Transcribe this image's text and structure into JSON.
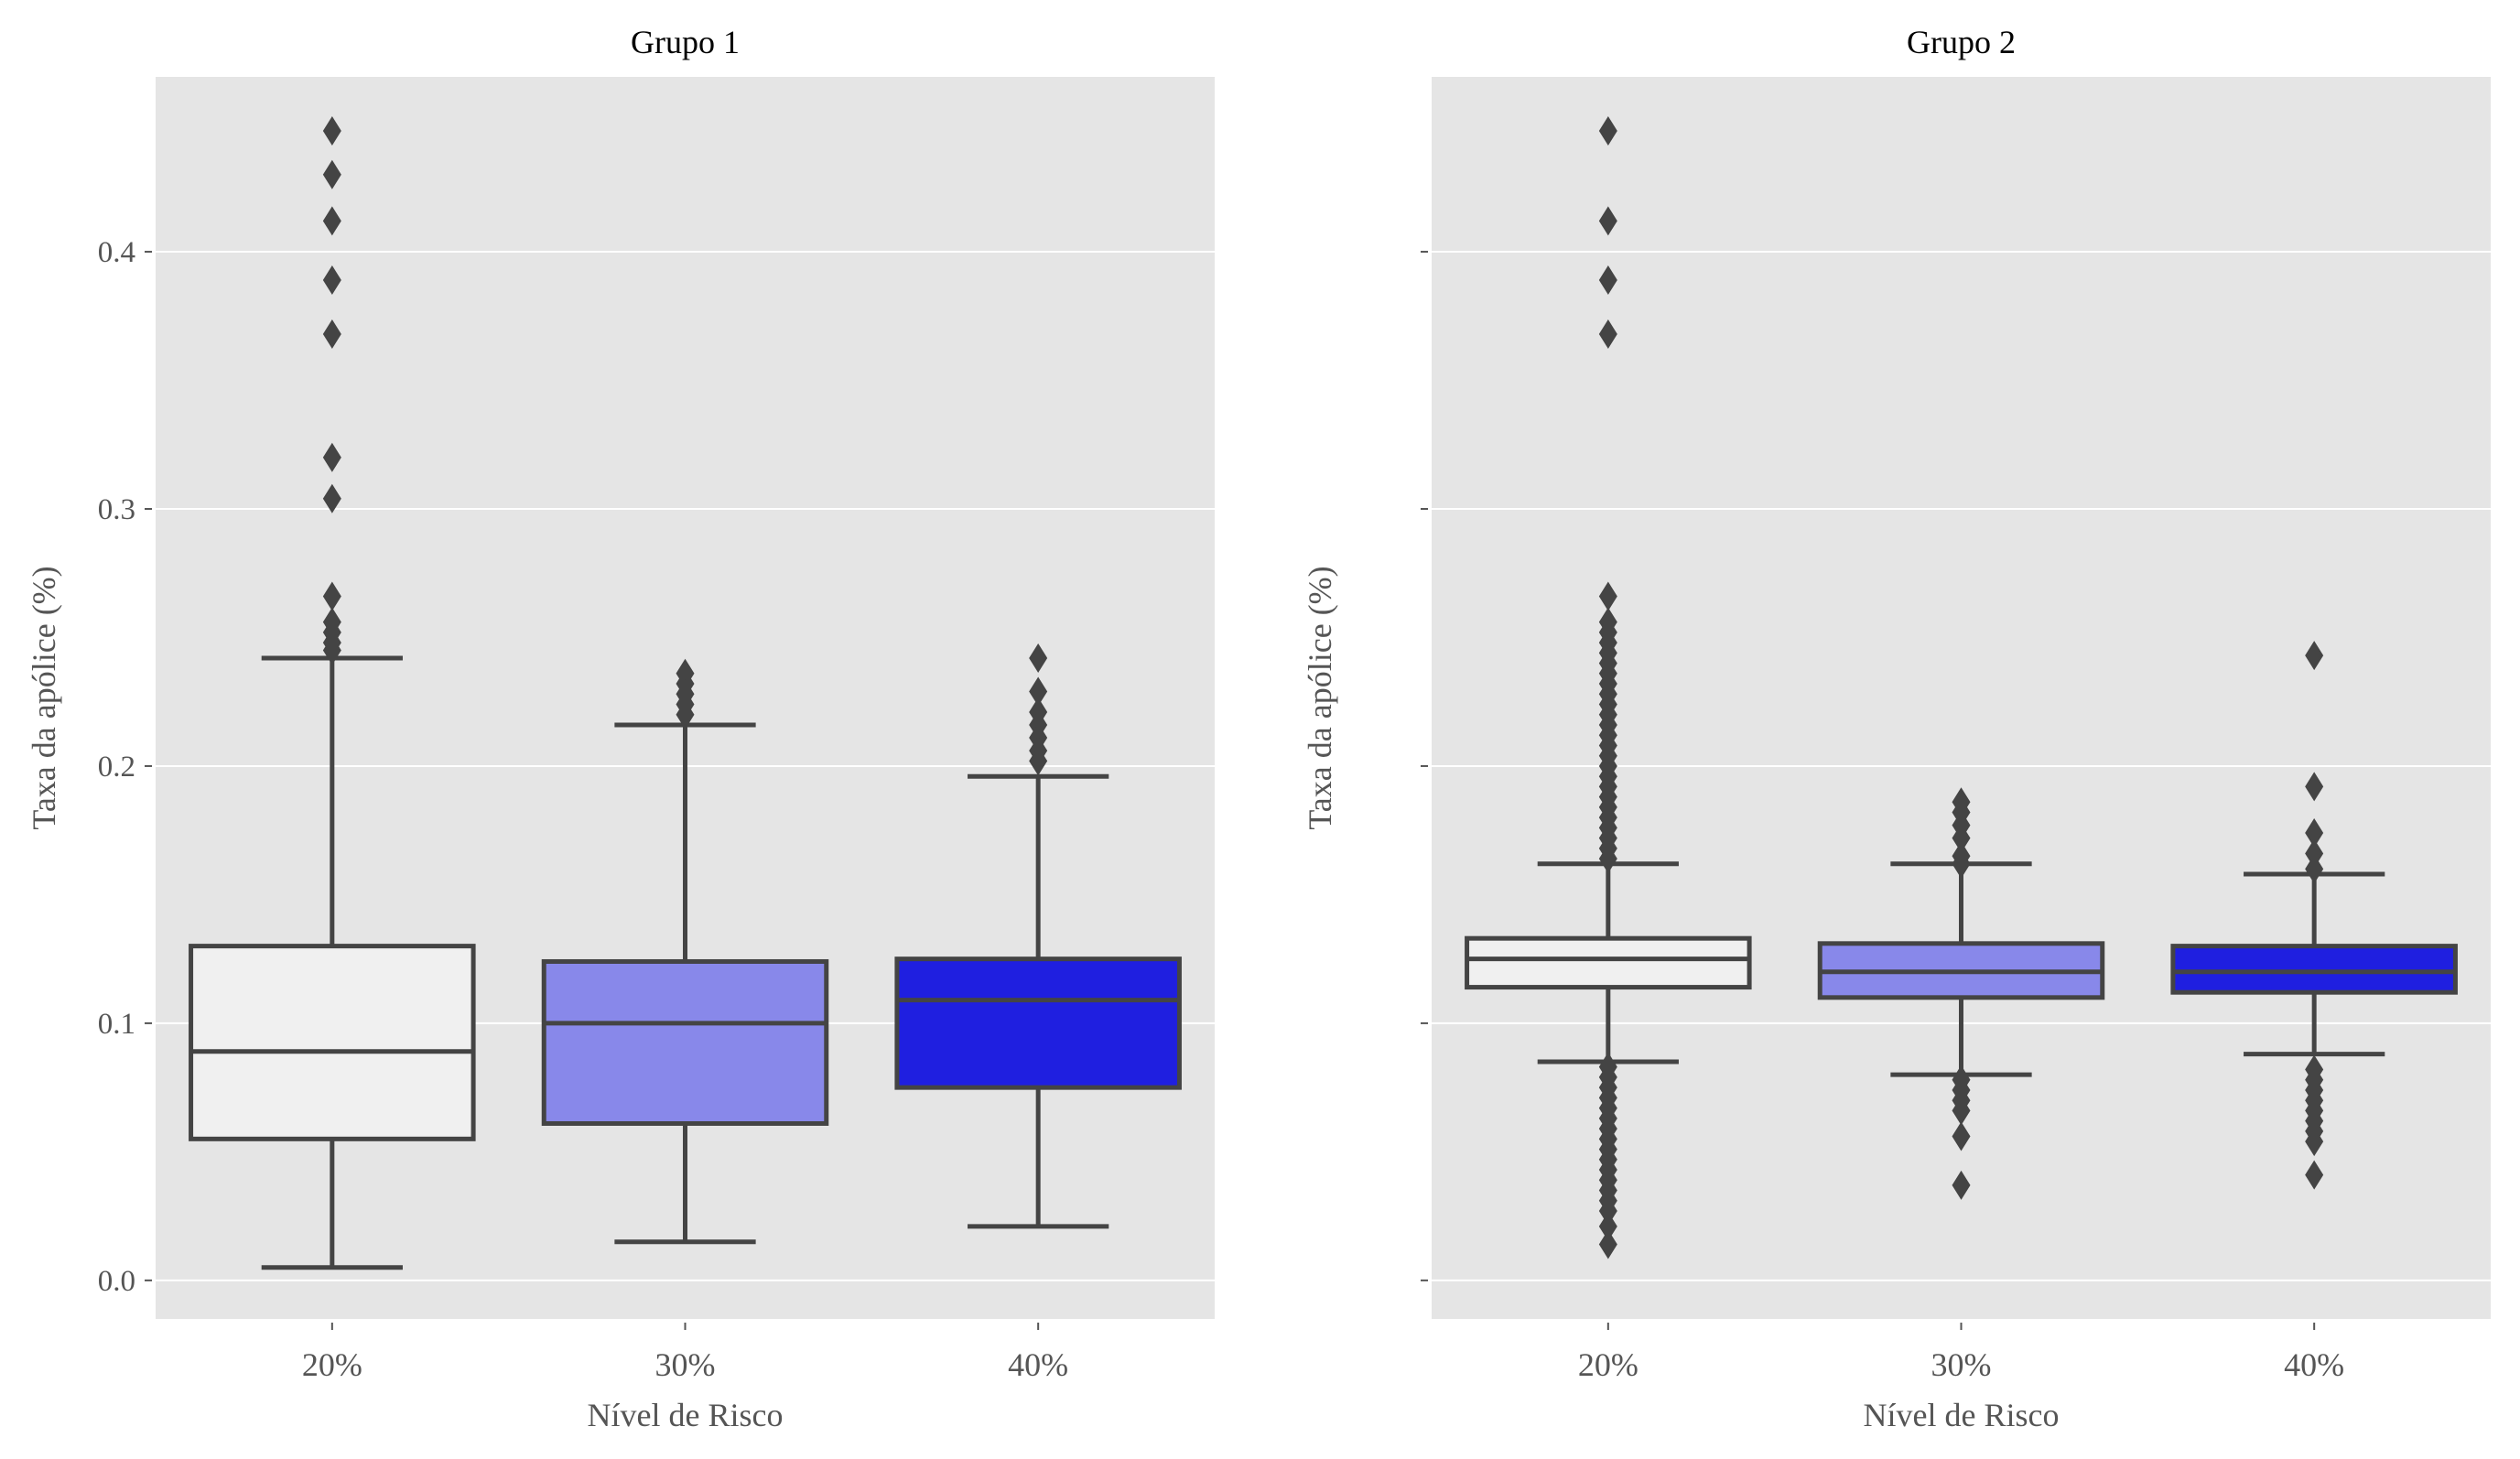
{
  "chart_data": [
    {
      "type": "box",
      "title": "Grupo 1",
      "xlabel": "Nível de Risco",
      "ylabel": "Taxa da apólice (%)",
      "ylim": [
        -0.015,
        0.468
      ],
      "yticks": [
        0.0,
        0.1,
        0.2,
        0.3,
        0.4
      ],
      "ytick_labels": [
        "0.0",
        "0.1",
        "0.2",
        "0.3",
        "0.4"
      ],
      "show_ytick_labels": true,
      "grid": true,
      "categories": [
        "20%",
        "30%",
        "40%"
      ],
      "colors": [
        "#f0f0f0",
        "#8888ea",
        "#1f1fe0"
      ],
      "boxes": [
        {
          "category": "20%",
          "whisker_low": 0.005,
          "q1": 0.055,
          "median": 0.089,
          "q3": 0.13,
          "whisker_high": 0.242,
          "outliers": [
            0.447,
            0.43,
            0.412,
            0.389,
            0.368,
            0.32,
            0.304,
            0.266,
            0.256,
            0.252,
            0.248,
            0.245
          ]
        },
        {
          "category": "30%",
          "whisker_low": 0.015,
          "q1": 0.061,
          "median": 0.1,
          "q3": 0.124,
          "whisker_high": 0.216,
          "outliers": [
            0.236,
            0.232,
            0.228,
            0.224,
            0.22
          ]
        },
        {
          "category": "40%",
          "whisker_low": 0.021,
          "q1": 0.075,
          "median": 0.109,
          "q3": 0.125,
          "whisker_high": 0.196,
          "outliers": [
            0.242,
            0.229,
            0.221,
            0.216,
            0.211,
            0.206,
            0.202
          ]
        }
      ]
    },
    {
      "type": "box",
      "title": "Grupo 2",
      "xlabel": "Nível de Risco",
      "ylabel": "Taxa da apólice (%)",
      "ylim": [
        -0.015,
        0.468
      ],
      "yticks": [
        0.0,
        0.1,
        0.2,
        0.3,
        0.4
      ],
      "show_ytick_labels": false,
      "grid": true,
      "categories": [
        "20%",
        "30%",
        "40%"
      ],
      "colors": [
        "#f0f0f0",
        "#8888ea",
        "#1f1fe0"
      ],
      "boxes": [
        {
          "category": "20%",
          "whisker_low": 0.085,
          "q1": 0.114,
          "median": 0.125,
          "q3": 0.133,
          "whisker_high": 0.162,
          "outliers": [
            0.447,
            0.412,
            0.389,
            0.368,
            0.266,
            0.256,
            0.252,
            0.248,
            0.244,
            0.24,
            0.236,
            0.232,
            0.228,
            0.224,
            0.22,
            0.216,
            0.212,
            0.208,
            0.204,
            0.2,
            0.196,
            0.192,
            0.188,
            0.184,
            0.18,
            0.176,
            0.172,
            0.168,
            0.164,
            0.083,
            0.079,
            0.075,
            0.071,
            0.067,
            0.063,
            0.059,
            0.055,
            0.051,
            0.047,
            0.043,
            0.039,
            0.035,
            0.031,
            0.027,
            0.021,
            0.014
          ]
        },
        {
          "category": "30%",
          "whisker_low": 0.08,
          "q1": 0.11,
          "median": 0.12,
          "q3": 0.131,
          "whisker_high": 0.162,
          "outliers": [
            0.186,
            0.182,
            0.177,
            0.172,
            0.165,
            0.162,
            0.078,
            0.074,
            0.07,
            0.066,
            0.056,
            0.037
          ]
        },
        {
          "category": "40%",
          "whisker_low": 0.088,
          "q1": 0.112,
          "median": 0.12,
          "q3": 0.13,
          "whisker_high": 0.158,
          "outliers": [
            0.243,
            0.192,
            0.174,
            0.166,
            0.16,
            0.082,
            0.078,
            0.074,
            0.07,
            0.066,
            0.062,
            0.058,
            0.054,
            0.041
          ]
        }
      ]
    }
  ]
}
